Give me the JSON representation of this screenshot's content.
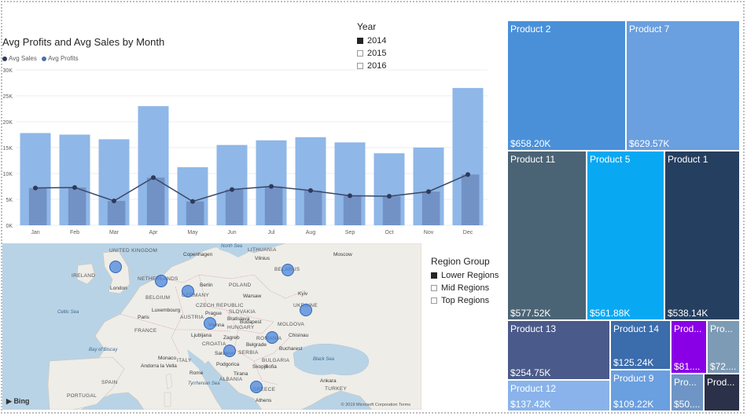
{
  "chart": {
    "title": "Avg Profits and Avg Sales by Month",
    "legend": [
      {
        "label": "Avg Sales",
        "color": "#2f3a5a"
      },
      {
        "label": "Avg Profits",
        "color": "#4f6fa8"
      }
    ]
  },
  "chart_data": {
    "type": "bar",
    "title": "Avg Profits and Avg Sales by Month",
    "categories": [
      "Jan",
      "Feb",
      "Mar",
      "Apr",
      "May",
      "Jun",
      "Jul",
      "Aug",
      "Sep",
      "Oct",
      "Nov",
      "Dec"
    ],
    "series": [
      {
        "name": "Avg Sales",
        "kind": "bar",
        "values": [
          17800,
          17500,
          16600,
          23000,
          11200,
          15500,
          16400,
          17000,
          16000,
          13900,
          15000,
          26500
        ],
        "color": "#8fb7e8"
      },
      {
        "name": "Avg Profits",
        "kind": "bar",
        "values": [
          7200,
          7300,
          4700,
          9200,
          4600,
          6900,
          7500,
          6700,
          5700,
          5600,
          6500,
          9800
        ],
        "color": "#6d8cbf"
      },
      {
        "name": "Avg Profits",
        "kind": "line",
        "values": [
          7200,
          7300,
          4700,
          9200,
          4600,
          6900,
          7500,
          6700,
          5700,
          5600,
          6500,
          9800
        ],
        "color": "#3b4767"
      }
    ],
    "y_ticks": [
      "0K",
      "5K",
      "10K",
      "15K",
      "20K",
      "25K",
      "30K"
    ],
    "ylim": [
      0,
      30000
    ],
    "grid": true,
    "legend_position": "top-left"
  },
  "year_slicer": {
    "title": "Year",
    "options": [
      {
        "label": "2014",
        "checked": true
      },
      {
        "label": "2015",
        "checked": false
      },
      {
        "label": "2016",
        "checked": false
      }
    ]
  },
  "region_slicer": {
    "title": "Region Group",
    "options": [
      {
        "label": "Lower Regions",
        "checked": true
      },
      {
        "label": "Mid Regions",
        "checked": false
      },
      {
        "label": "Top Regions",
        "checked": false
      }
    ]
  },
  "map": {
    "countries": [
      "UNITED KINGDOM",
      "IRELAND",
      "NETHERLANDS",
      "BELGIUM",
      "GERMANY",
      "POLAND",
      "LITHUANIA",
      "BELARUS",
      "UKRAINE",
      "CZECH REPUBLIC",
      "SLOVAKIA",
      "AUSTRIA",
      "HUNGARY",
      "MOLDOVA",
      "ROMANIA",
      "FRANCE",
      "CROATIA",
      "SERBIA",
      "BULGARIA",
      "ITALY",
      "SPAIN",
      "PORTUGAL",
      "TURKEY",
      "GREECE",
      "ALBANIA"
    ],
    "cities": [
      "Copenhagen",
      "Vilnius",
      "Moscow",
      "London",
      "Berlin",
      "Warsaw",
      "Kyiv",
      "Paris",
      "Luxembourg",
      "Prague",
      "Vienna",
      "Bratislava",
      "Budapest",
      "Ljubljana",
      "Zagreb",
      "Belgrade",
      "Bucharest",
      "Sarajevo",
      "Podgorica",
      "Skopje",
      "Sofia",
      "Monaco",
      "Andorra la Vella",
      "Rome",
      "Tirana",
      "Athens",
      "Ankara",
      "Chisinau"
    ],
    "seas": [
      "Baltic Sea",
      "Bay of Biscay",
      "Black Sea",
      "Tyrrhenian Sea",
      "Mediterranean Sea",
      "Celtic Sea",
      "North Sea"
    ],
    "bing_label": "Bing",
    "copyright": "© 2019 Microsoft Corporation  Terms"
  },
  "treemap": [
    {
      "name": "Product 2",
      "value": "$658.20K",
      "color": "#4a90d9"
    },
    {
      "name": "Product 7",
      "value": "$629.57K",
      "color": "#6a9fe0"
    },
    {
      "name": "Product 11",
      "value": "$577.52K",
      "color": "#4b6475"
    },
    {
      "name": "Product 5",
      "value": "$561.88K",
      "color": "#09a8f2"
    },
    {
      "name": "Product 1",
      "value": "$538.14K",
      "color": "#253f60"
    },
    {
      "name": "Product 13",
      "value": "$254.75K",
      "color": "#4a5a8a"
    },
    {
      "name": "Product 14",
      "value": "$125.24K",
      "color": "#3b6cab"
    },
    {
      "name": "Prod...",
      "value": "$81....",
      "color": "#8a00e6"
    },
    {
      "name": "Pro...",
      "value": "$72....",
      "color": "#7e9bb5"
    },
    {
      "name": "Product 12",
      "value": "$137.42K",
      "color": "#89b3ea"
    },
    {
      "name": "Product 9",
      "value": "$109.22K",
      "color": "#6a9fe0"
    },
    {
      "name": "Pro...",
      "value": "$50....",
      "color": "#6e95c5"
    },
    {
      "name": "Prod...",
      "value": "",
      "color": "#2a3148"
    }
  ]
}
